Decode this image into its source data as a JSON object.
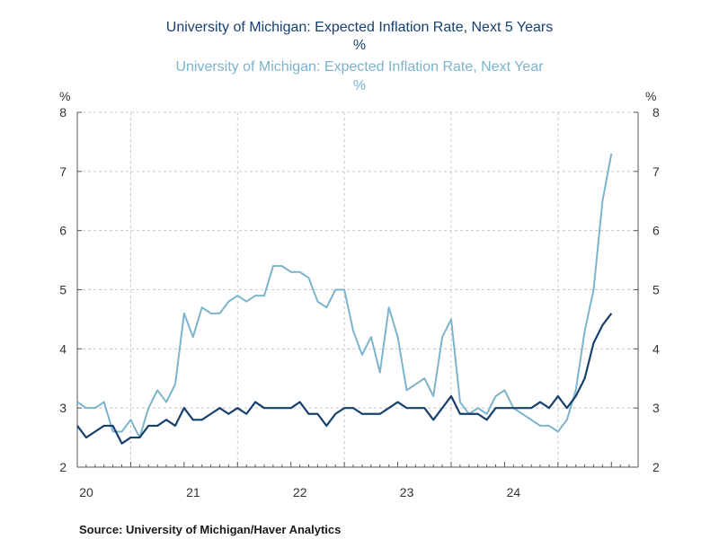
{
  "chart_data": {
    "type": "line",
    "titles": [
      {
        "text": "University of Michigan: Expected Inflation Rate, Next 5 Years",
        "color": "#16406e"
      },
      {
        "text": "%",
        "color": "#16406e"
      },
      {
        "text": "University of Michigan: Expected Inflation Rate, Next Year",
        "color": "#7bb4cc"
      },
      {
        "text": "%",
        "color": "#7bb4cc"
      }
    ],
    "left_unit": "%",
    "right_unit": "%",
    "ylim": [
      2,
      8
    ],
    "y_ticks": [
      2,
      3,
      4,
      5,
      6,
      7,
      8
    ],
    "x_range": [
      2020.0,
      2025.25
    ],
    "x_ticks": [
      {
        "label": "20",
        "at": 2020.0
      },
      {
        "label": "21",
        "at": 2021.0
      },
      {
        "label": "22",
        "at": 2022.0
      },
      {
        "label": "23",
        "at": 2023.0
      },
      {
        "label": "24",
        "at": 2024.0
      }
    ],
    "x_gridlines": [
      2020.5,
      2021.5,
      2022.5,
      2023.5,
      2024.5
    ],
    "grid": true,
    "source": "Source:  University of Michigan/Haver Analytics",
    "series": [
      {
        "name": "Expected Inflation Rate, Next 5 Years",
        "color": "#16406e",
        "start": 2020.0,
        "step_months": 1,
        "values": [
          2.7,
          2.5,
          2.6,
          2.7,
          2.7,
          2.4,
          2.5,
          2.5,
          2.7,
          2.7,
          2.8,
          2.7,
          3.0,
          2.8,
          2.8,
          2.9,
          3.0,
          2.9,
          3.0,
          2.9,
          3.1,
          3.0,
          3.0,
          3.0,
          3.0,
          3.1,
          2.9,
          2.9,
          2.7,
          2.9,
          3.0,
          3.0,
          2.9,
          2.9,
          2.9,
          3.0,
          3.1,
          3.0,
          3.0,
          3.0,
          2.8,
          3.0,
          3.2,
          2.9,
          2.9,
          2.9,
          2.8,
          3.0,
          3.0,
          3.0,
          3.0,
          3.0,
          3.1,
          3.0,
          3.2,
          3.0,
          3.2,
          3.5,
          4.1,
          4.4,
          4.6
        ]
      },
      {
        "name": "Expected Inflation Rate, Next Year",
        "color": "#7bb4cc",
        "start": 2020.0,
        "step_months": 1,
        "values": [
          3.1,
          3.0,
          3.0,
          3.1,
          2.6,
          2.6,
          2.8,
          2.5,
          3.0,
          3.3,
          3.1,
          3.4,
          4.6,
          4.2,
          4.7,
          4.6,
          4.6,
          4.8,
          4.9,
          4.8,
          4.9,
          4.9,
          5.4,
          5.4,
          5.3,
          5.3,
          5.2,
          4.8,
          4.7,
          5.0,
          5.0,
          4.3,
          3.9,
          4.2,
          3.6,
          4.7,
          4.2,
          3.3,
          3.4,
          3.5,
          3.2,
          4.2,
          4.5,
          3.1,
          2.9,
          3.0,
          2.9,
          3.2,
          3.3,
          3.0,
          2.9,
          2.8,
          2.7,
          2.7,
          2.6,
          2.8,
          3.3,
          4.3,
          5.0,
          6.5,
          7.3
        ]
      }
    ]
  }
}
